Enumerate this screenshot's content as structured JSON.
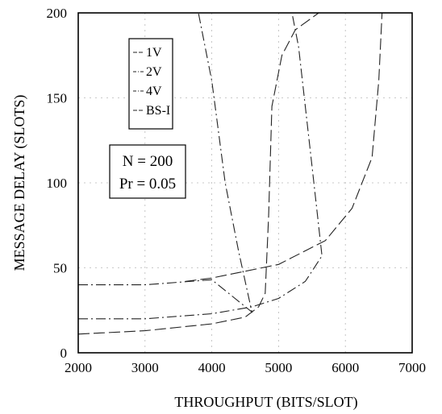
{
  "chart_data": {
    "type": "line",
    "title": "",
    "xlabel": "THROUGHPUT (BITS/SLOT)",
    "ylabel": "MESSAGE DELAY (SLOTS)",
    "xlim": [
      2000,
      7000
    ],
    "ylim": [
      0,
      200
    ],
    "x_ticks": [
      "2000",
      "3000",
      "4000",
      "5000",
      "6000",
      "7000"
    ],
    "y_ticks": [
      "0",
      "50",
      "100",
      "150",
      "200"
    ],
    "grid": true,
    "legend_position": "top-left",
    "parameters": [
      "N = 200",
      "Pr = 0.05"
    ],
    "series": [
      {
        "name": "1V",
        "style": "dashed",
        "points": [
          [
            2000,
            11
          ],
          [
            3000,
            13
          ],
          [
            4000,
            17
          ],
          [
            4500,
            21
          ],
          [
            4700,
            27
          ],
          [
            4800,
            35
          ],
          [
            4850,
            80
          ],
          [
            4900,
            145
          ],
          [
            5050,
            175
          ],
          [
            5250,
            190
          ],
          [
            5600,
            200
          ]
        ]
      },
      {
        "name": "2V",
        "style": "dash-dot",
        "points": [
          [
            2000,
            20
          ],
          [
            3000,
            20
          ],
          [
            4000,
            23
          ],
          [
            4600,
            27
          ],
          [
            5000,
            32
          ],
          [
            5400,
            42
          ],
          [
            5650,
            57
          ],
          [
            5500,
            110
          ],
          [
            5300,
            180
          ],
          [
            5200,
            200
          ]
        ]
      },
      {
        "name": "4V",
        "style": "dash-dot",
        "points": [
          [
            2000,
            40
          ],
          [
            3000,
            40
          ],
          [
            4000,
            43
          ],
          [
            4600,
            24
          ],
          [
            4400,
            60
          ],
          [
            4200,
            100
          ],
          [
            4000,
            160
          ],
          [
            3800,
            200
          ]
        ]
      },
      {
        "name": "BS-I",
        "style": "dashed",
        "points": [
          [
            3600,
            42
          ],
          [
            4000,
            44
          ],
          [
            5000,
            52
          ],
          [
            5700,
            66
          ],
          [
            6100,
            85
          ],
          [
            6400,
            115
          ],
          [
            6500,
            160
          ],
          [
            6550,
            200
          ]
        ]
      }
    ]
  }
}
